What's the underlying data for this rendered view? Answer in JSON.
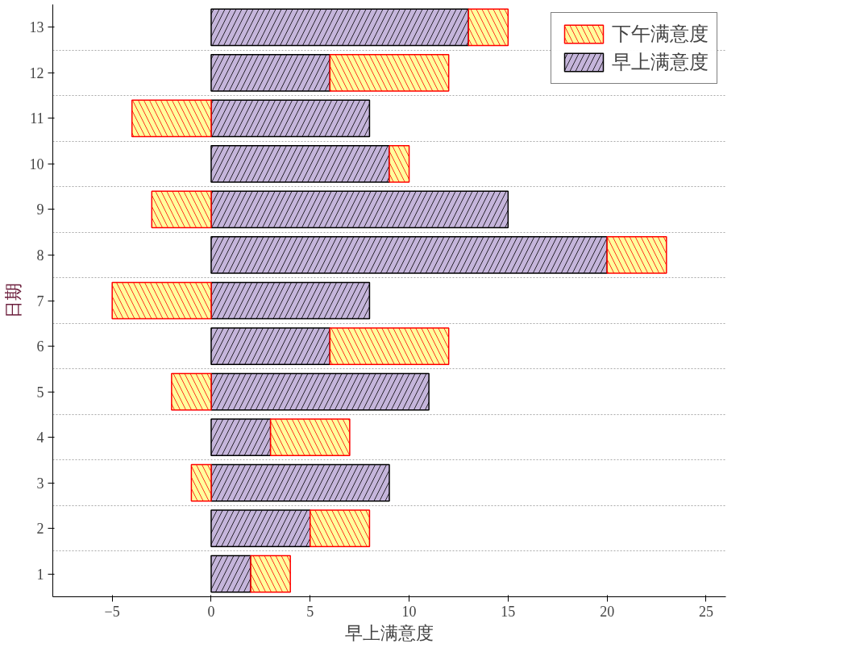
{
  "chart_data": {
    "type": "bar",
    "orientation": "horizontal",
    "stacked": true,
    "categories": [
      "13",
      "12",
      "11",
      "10",
      "9",
      "8",
      "7",
      "6",
      "5",
      "4",
      "3",
      "2",
      "1"
    ],
    "series": [
      {
        "name": "早上满意度",
        "color": "#c5b5db",
        "values": [
          13,
          6,
          8,
          9,
          15,
          20,
          8,
          6,
          11,
          3,
          9,
          5,
          2
        ]
      },
      {
        "name": "下午满意度",
        "color": "#ffff9c",
        "values": [
          2,
          6,
          -4,
          1,
          -3,
          3,
          -5,
          6,
          -2,
          4,
          -1,
          3,
          2
        ]
      }
    ],
    "xlabel": "早上满意度",
    "ylabel": "日期",
    "xlim": [
      -8,
      26
    ],
    "xticks": [
      -5,
      0,
      5,
      10,
      15,
      20,
      25
    ],
    "grid": "y",
    "legend": "top right"
  }
}
